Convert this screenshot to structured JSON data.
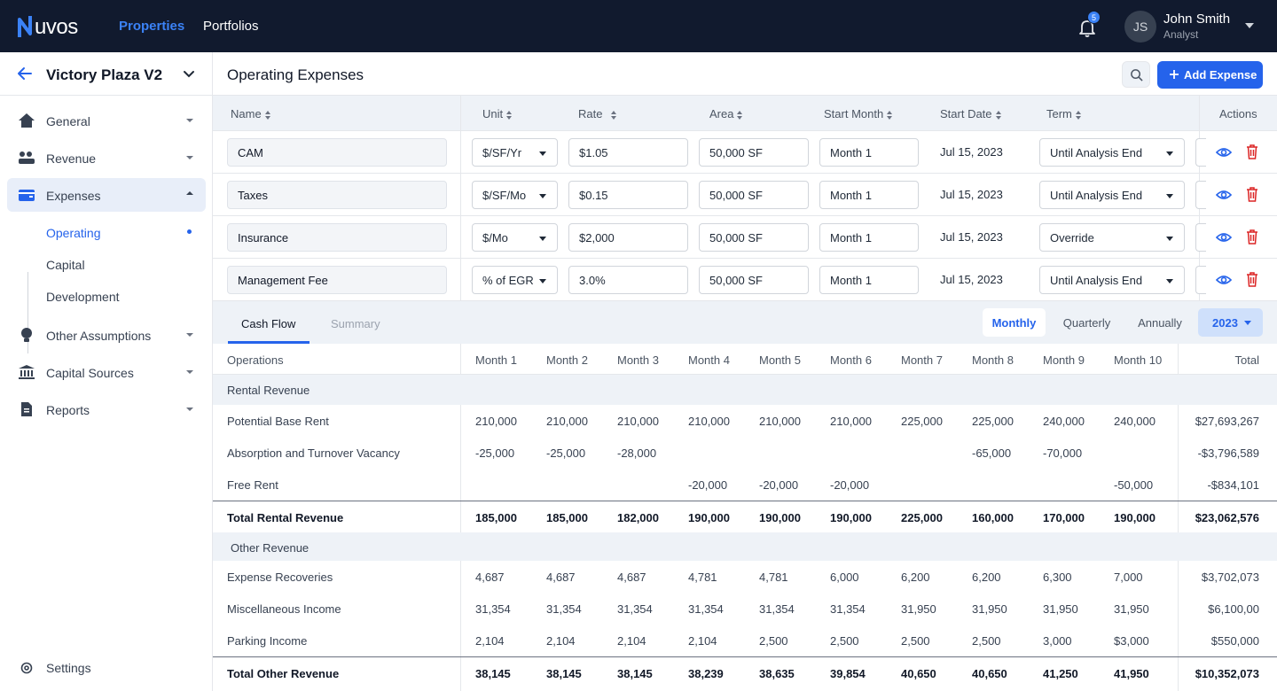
{
  "topbar": {
    "logo": "Nuvos",
    "nav": [
      "Properties",
      "Portfolios"
    ],
    "notification_count": "5",
    "user": {
      "initials": "JS",
      "name": "John Smith",
      "role": "Analyst"
    }
  },
  "sidebar": {
    "project": "Victory Plaza V2",
    "items": [
      {
        "label": "General",
        "icon": "home-icon"
      },
      {
        "label": "Revenue",
        "icon": "money-hand-icon"
      },
      {
        "label": "Expenses",
        "icon": "wallet-icon"
      },
      {
        "label": "Other Assumptions",
        "icon": "lightbulb-icon"
      },
      {
        "label": "Capital Sources",
        "icon": "bank-icon"
      },
      {
        "label": "Reports",
        "icon": "document-icon"
      }
    ],
    "subitems": [
      "Operating",
      "Capital",
      "Development"
    ],
    "settings": "Settings"
  },
  "page": {
    "title": "Operating Expenses",
    "add_button": "Add Expense"
  },
  "expense_table": {
    "headers": [
      "Name",
      "Unit",
      "Rate",
      "Area",
      "Start Month",
      "Start Date",
      "Term",
      "Actions"
    ],
    "rows": [
      {
        "name": "CAM",
        "unit": "$/SF/Yr",
        "rate": "$1.05",
        "area": "50,000 SF",
        "start_month": "Month 1",
        "start_date": "Jul 15, 2023",
        "term": "Until Analysis End"
      },
      {
        "name": "Taxes",
        "unit": "$/SF/Mo",
        "rate": "$0.15",
        "area": "50,000 SF",
        "start_month": "Month 1",
        "start_date": "Jul 15, 2023",
        "term": "Until Analysis End"
      },
      {
        "name": "Insurance",
        "unit": "$/Mo",
        "rate": "$2,000",
        "area": "50,000 SF",
        "start_month": "Month 1",
        "start_date": "Jul 15, 2023",
        "term": "Override"
      },
      {
        "name": "Management Fee",
        "unit": "% of EGR",
        "rate": "3.0%",
        "area": "50,000 SF",
        "start_month": "Month 1",
        "start_date": "Jul 15, 2023",
        "term": "Until Analysis End"
      }
    ]
  },
  "cashflow": {
    "tabs": [
      "Cash Flow",
      "Summary"
    ],
    "periods": [
      "Monthly",
      "Quarterly",
      "Annually"
    ],
    "year": "2023",
    "headers": [
      "Operations",
      "Month 1",
      "Month 2",
      "Month 3",
      "Month 4",
      "Month 5",
      "Month 6",
      "Month 7",
      "Month 8",
      "Month 9",
      "Month 10",
      "Total"
    ],
    "sections": [
      {
        "title": "Rental Revenue",
        "rows": [
          {
            "label": "Potential Base Rent",
            "values": [
              "210,000",
              "210,000",
              "210,000",
              "210,000",
              "210,000",
              "210,000",
              "225,000",
              "225,000",
              "240,000",
              "240,000"
            ],
            "total": "$27,693,267"
          },
          {
            "label": "Absorption and Turnover Vacancy",
            "values": [
              "-25,000",
              "-25,000",
              "-28,000",
              "",
              "",
              "",
              "",
              "-65,000",
              "-70,000",
              ""
            ],
            "total": "-$3,796,589"
          },
          {
            "label": "Free Rent",
            "values": [
              "",
              "",
              "",
              "-20,000",
              "-20,000",
              "-20,000",
              "",
              "",
              "",
              "-50,000"
            ],
            "total": "-$834,101"
          }
        ],
        "total_row": {
          "label": "Total Rental Revenue",
          "values": [
            "185,000",
            "185,000",
            "182,000",
            "190,000",
            "190,000",
            "190,000",
            "225,000",
            "160,000",
            "170,000",
            "190,000"
          ],
          "total": "$23,062,576"
        }
      },
      {
        "title": "Other Revenue",
        "rows": [
          {
            "label": "Expense Recoveries",
            "values": [
              "4,687",
              "4,687",
              "4,687",
              "4,781",
              "4,781",
              "6,000",
              "6,200",
              "6,200",
              "6,300",
              "7,000"
            ],
            "total": "$3,702,073"
          },
          {
            "label": "Miscellaneous Income",
            "values": [
              "31,354",
              "31,354",
              "31,354",
              "31,354",
              "31,354",
              "31,354",
              "31,950",
              "31,950",
              "31,950",
              "31,950"
            ],
            "total": "$6,100,00"
          },
          {
            "label": "Parking Income",
            "values": [
              "2,104",
              "2,104",
              "2,104",
              "2,104",
              "2,500",
              "2,500",
              "2,500",
              "2,500",
              "3,000",
              "$3,000"
            ],
            "total": "$550,000"
          }
        ],
        "total_row": {
          "label": "Total Other Revenue",
          "values": [
            "38,145",
            "38,145",
            "38,145",
            "38,239",
            "38,635",
            "39,854",
            "40,650",
            "40,650",
            "41,250",
            "41,950"
          ],
          "total": "$10,352,073"
        }
      }
    ]
  },
  "colors": {
    "topbar": "#111a2e",
    "accent": "#2563eb",
    "danger": "#dc2626"
  }
}
